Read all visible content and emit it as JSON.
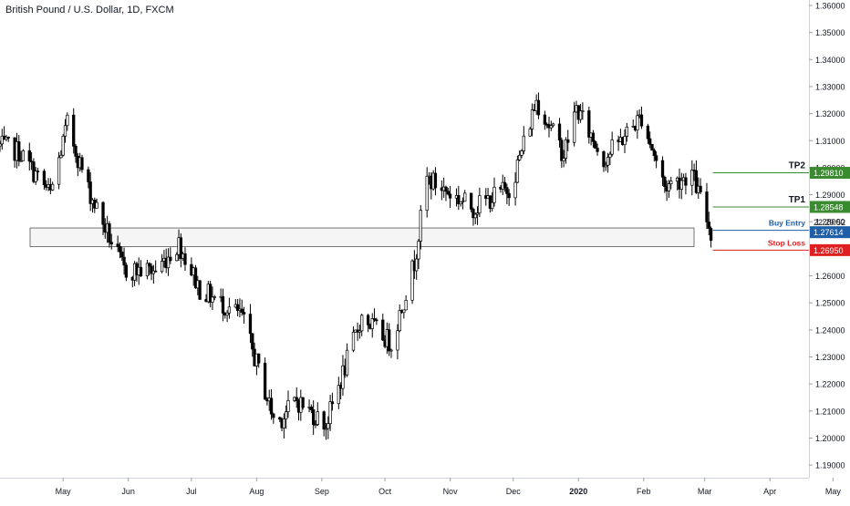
{
  "chart_data": {
    "type": "candlestick",
    "title": "British Pound / U.S. Dollar, 1D, FXCM",
    "ylim": [
      1.186,
      1.361
    ],
    "y_ticks": [
      "1.36000",
      "1.35000",
      "1.34000",
      "1.33000",
      "1.32000",
      "1.31000",
      "1.30000",
      "1.29000",
      "1.28000",
      "1.26000",
      "1.25000",
      "1.24000",
      "1.23000",
      "1.22000",
      "1.21000",
      "1.20000",
      "1.19000"
    ],
    "x_ticks": [
      "May",
      "Jun",
      "Jul",
      "Aug",
      "Sep",
      "Oct",
      "Nov",
      "Dec",
      "2020",
      "Feb",
      "Mar",
      "Apr",
      "May"
    ],
    "countdown": "22:29:52",
    "levels": [
      {
        "name": "TP2",
        "label": "TP2",
        "price": 1.2981,
        "price_text": "1.29810",
        "color": "#3a8a2f"
      },
      {
        "name": "TP1",
        "label": "TP1",
        "price": 1.28548,
        "price_text": "1.28548",
        "color": "#3a8a2f"
      },
      {
        "name": "Buy Entry",
        "label": "Buy Entry",
        "price": 1.27684,
        "price_text": "1.27684",
        "color": "#1e5fa8"
      },
      {
        "name": "Current Price",
        "label": "",
        "price": 1.27614,
        "price_text": "1.27614",
        "color": "#1e5fa8"
      },
      {
        "name": "Stop Loss",
        "label": "Stop Loss",
        "price": 1.2695,
        "price_text": "1.26950",
        "color": "#e02020"
      }
    ],
    "zone": {
      "high": 1.2777,
      "low": 1.2708
    },
    "anchors": [
      [
        "2019-04-01",
        1.308
      ],
      [
        "2019-04-10",
        1.306
      ],
      [
        "2019-04-25",
        1.29
      ],
      [
        "2019-05-03",
        1.316
      ],
      [
        "2019-05-13",
        1.292
      ],
      [
        "2019-05-30",
        1.262
      ],
      [
        "2019-06-14",
        1.262
      ],
      [
        "2019-06-25",
        1.272
      ],
      [
        "2019-07-05",
        1.255
      ],
      [
        "2019-07-25",
        1.245
      ],
      [
        "2019-08-10",
        1.205
      ],
      [
        "2019-08-20",
        1.214
      ],
      [
        "2019-09-03",
        1.205
      ],
      [
        "2019-09-20",
        1.245
      ],
      [
        "2019-10-04",
        1.235
      ],
      [
        "2019-10-15",
        1.265
      ],
      [
        "2019-10-21",
        1.296
      ],
      [
        "2019-11-12",
        1.285
      ],
      [
        "2019-11-30",
        1.293
      ],
      [
        "2019-12-12",
        1.325
      ],
      [
        "2019-12-25",
        1.305
      ],
      [
        "2019-12-31",
        1.322
      ],
      [
        "2020-01-13",
        1.303
      ],
      [
        "2020-01-31",
        1.319
      ],
      [
        "2020-02-11",
        1.293
      ],
      [
        "2020-02-24",
        1.298
      ],
      [
        "2020-03-04",
        1.276
      ]
    ]
  }
}
